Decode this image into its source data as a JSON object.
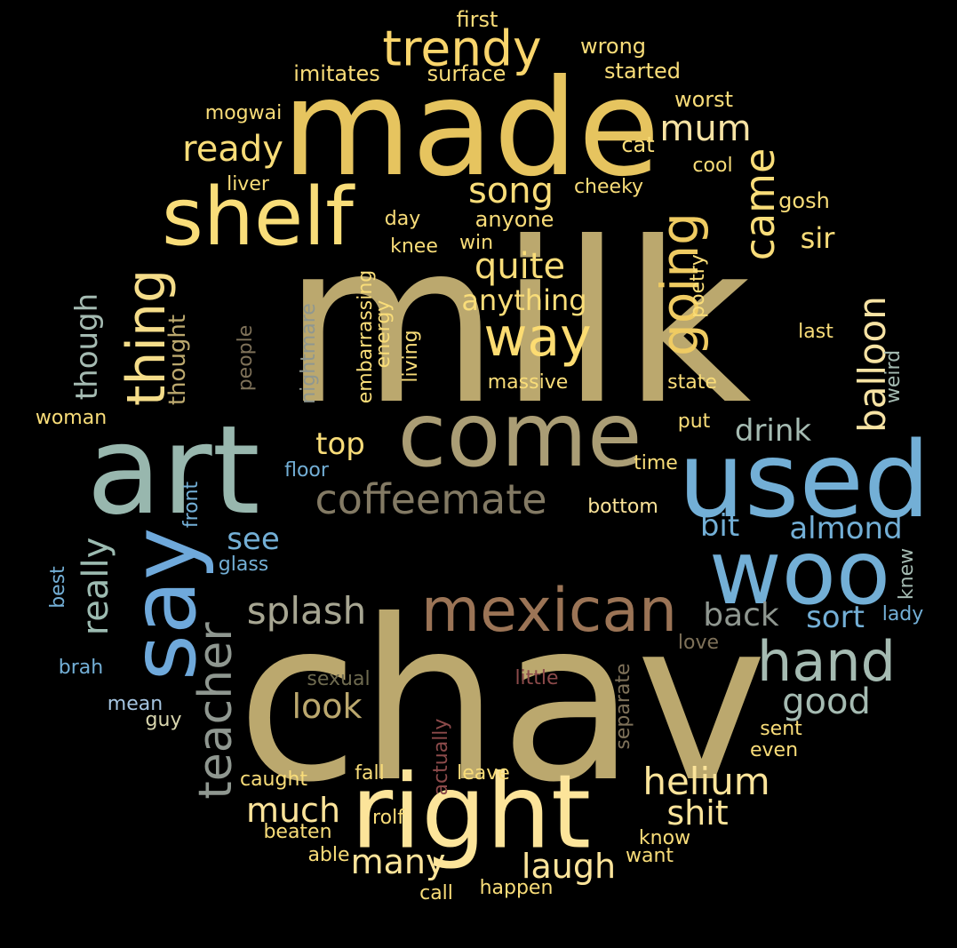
{
  "words": [
    {
      "text": "milk",
      "color": "#BBA86E"
    },
    {
      "text": "chav",
      "color": "#BBA86E"
    },
    {
      "text": "made",
      "color": "#E6C45F"
    },
    {
      "text": "art",
      "color": "#98B7AE"
    },
    {
      "text": "used",
      "color": "#73AFD6"
    },
    {
      "text": "right",
      "color": "#FCE49A"
    },
    {
      "text": "come",
      "color": "#AA9D75"
    },
    {
      "text": "woo",
      "color": "#73AFD6"
    },
    {
      "text": "say",
      "color": "#6FA9DB"
    },
    {
      "text": "shelf",
      "color": "#F9DD79"
    },
    {
      "text": "mexican",
      "color": "#9B7456"
    },
    {
      "text": "trendy",
      "color": "#F9D56C"
    },
    {
      "text": "hand",
      "color": "#A5BBB2"
    },
    {
      "text": "going",
      "color": "#EFCB62"
    },
    {
      "text": "way",
      "color": "#FCDC72"
    },
    {
      "text": "thing",
      "color": "#F5DD8A"
    },
    {
      "text": "teacher",
      "color": "#8F9790"
    },
    {
      "text": "coffeemate",
      "color": "#837A64"
    },
    {
      "text": "helium",
      "color": "#FCE49A"
    },
    {
      "text": "balloon",
      "color": "#F7E3A4"
    },
    {
      "text": "came",
      "color": "#F9DD79"
    },
    {
      "text": "splash",
      "color": "#A7A692"
    },
    {
      "text": "really",
      "color": "#9CBBB1"
    },
    {
      "text": "quite",
      "color": "#F9DD79"
    },
    {
      "text": "song",
      "color": "#F9DD79"
    },
    {
      "text": "ready",
      "color": "#F9DD79"
    },
    {
      "text": "mum",
      "color": "#F7E3A4"
    },
    {
      "text": "good",
      "color": "#A5BBB2"
    },
    {
      "text": "laugh",
      "color": "#FCE49A"
    },
    {
      "text": "much",
      "color": "#FCE49A"
    },
    {
      "text": "many",
      "color": "#FCE49A"
    },
    {
      "text": "shit",
      "color": "#FCE49A"
    },
    {
      "text": "look",
      "color": "#BBA86E"
    },
    {
      "text": "back",
      "color": "#8F9790"
    },
    {
      "text": "sort",
      "color": "#73AFD6"
    },
    {
      "text": "drink",
      "color": "#A5BBB2"
    },
    {
      "text": "almond",
      "color": "#73AFD6"
    },
    {
      "text": "bit",
      "color": "#73AFD6"
    },
    {
      "text": "top",
      "color": "#F9DD79"
    },
    {
      "text": "see",
      "color": "#73AFD6"
    },
    {
      "text": "though",
      "color": "#A5BBB2"
    },
    {
      "text": "anything",
      "color": "#F9DD79"
    },
    {
      "text": "sir",
      "color": "#F9DD79"
    },
    {
      "text": "thought",
      "color": "#BBA86E"
    },
    {
      "text": "first",
      "color": "#F9DD79"
    },
    {
      "text": "wrong",
      "color": "#F9DD79"
    },
    {
      "text": "imitates",
      "color": "#F9DD79"
    },
    {
      "text": "surface",
      "color": "#F9DD79"
    },
    {
      "text": "started",
      "color": "#F9DD79"
    },
    {
      "text": "worst",
      "color": "#F9DD79"
    },
    {
      "text": "mogwai",
      "color": "#F9DD79"
    },
    {
      "text": "cat",
      "color": "#F9DD79"
    },
    {
      "text": "cool",
      "color": "#F9DD79"
    },
    {
      "text": "liver",
      "color": "#F9DD79"
    },
    {
      "text": "cheeky",
      "color": "#F9DD79"
    },
    {
      "text": "gosh",
      "color": "#F9DD79"
    },
    {
      "text": "day",
      "color": "#F9DD79"
    },
    {
      "text": "anyone",
      "color": "#F9DD79"
    },
    {
      "text": "knee",
      "color": "#F9DD79"
    },
    {
      "text": "win",
      "color": "#F9DD79"
    },
    {
      "text": "poetry",
      "color": "#F9DD79"
    },
    {
      "text": "embarrassing",
      "color": "#F9DD79"
    },
    {
      "text": "energy",
      "color": "#F9DD79"
    },
    {
      "text": "living",
      "color": "#F9DD79"
    },
    {
      "text": "nightmare",
      "color": "#8F9790"
    },
    {
      "text": "people",
      "color": "#7E7159"
    },
    {
      "text": "massive",
      "color": "#F9DD79"
    },
    {
      "text": "last",
      "color": "#F9DD79"
    },
    {
      "text": "state",
      "color": "#F9DD79"
    },
    {
      "text": "weird",
      "color": "#A5BBB2"
    },
    {
      "text": "woman",
      "color": "#F9DD79"
    },
    {
      "text": "put",
      "color": "#F9DD79"
    },
    {
      "text": "floor",
      "color": "#73AFD6"
    },
    {
      "text": "time",
      "color": "#F9DD79"
    },
    {
      "text": "front",
      "color": "#73AFD6"
    },
    {
      "text": "bottom",
      "color": "#FCE49A"
    },
    {
      "text": "glass",
      "color": "#73AFD6"
    },
    {
      "text": "best",
      "color": "#73AFD6"
    },
    {
      "text": "knew",
      "color": "#A5BBB2"
    },
    {
      "text": "lady",
      "color": "#73AFD6"
    },
    {
      "text": "love",
      "color": "#7E7159"
    },
    {
      "text": "brah",
      "color": "#73AFD6"
    },
    {
      "text": "sexual",
      "color": "#6E6A4F"
    },
    {
      "text": "little",
      "color": "#8C4A4A"
    },
    {
      "text": "separate",
      "color": "#7E7159"
    },
    {
      "text": "mean",
      "color": "#A5C4E0"
    },
    {
      "text": "guy",
      "color": "#D9D6AE"
    },
    {
      "text": "actually",
      "color": "#8C4A4A"
    },
    {
      "text": "sent",
      "color": "#F9DD79"
    },
    {
      "text": "even",
      "color": "#F9DD79"
    },
    {
      "text": "fall",
      "color": "#F9DD79"
    },
    {
      "text": "leave",
      "color": "#F9DD79"
    },
    {
      "text": "caught",
      "color": "#F9DD79"
    },
    {
      "text": "rolf",
      "color": "#F9DD79"
    },
    {
      "text": "beaten",
      "color": "#F9DD79"
    },
    {
      "text": "know",
      "color": "#F9DD79"
    },
    {
      "text": "able",
      "color": "#F9DD79"
    },
    {
      "text": "want",
      "color": "#F9DD79"
    },
    {
      "text": "call",
      "color": "#F9DD79"
    },
    {
      "text": "happen",
      "color": "#F9DD79"
    }
  ]
}
